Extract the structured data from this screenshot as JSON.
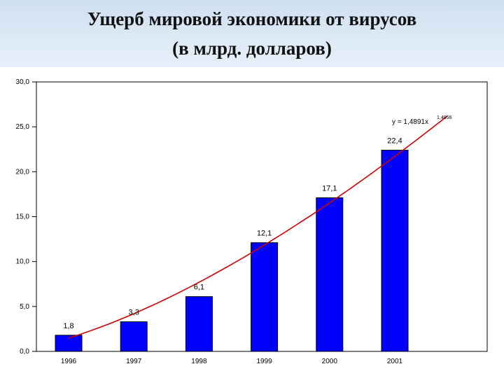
{
  "header": {
    "title_line1": "Ущерб мировой экономики от вирусов",
    "title_line2": "(в млрд. долларов)"
  },
  "chart_data": {
    "type": "bar",
    "categories": [
      "1996",
      "1997",
      "1998",
      "1999",
      "2000",
      "2001"
    ],
    "values": [
      1.8,
      3.3,
      6.1,
      12.1,
      17.1,
      22.4
    ],
    "data_labels": [
      "1,8",
      "3,3",
      "6,1",
      "12,1",
      "17,1",
      "22,4"
    ],
    "ylim": [
      0,
      30
    ],
    "yticks": [
      0,
      5,
      10,
      15,
      20,
      25,
      30
    ],
    "ytick_labels": [
      "0,0",
      "5,0",
      "10,0",
      "15,0",
      "20,0",
      "25,0",
      "30,0"
    ],
    "grid": false,
    "bar_color": "#0000ff",
    "trendline": {
      "type": "power",
      "coefficient": 1.4891,
      "exponent": 1.4956,
      "color": "#cc0000",
      "equation_label": "y = 1,4891x",
      "equation_exponent": "1,4956"
    }
  }
}
